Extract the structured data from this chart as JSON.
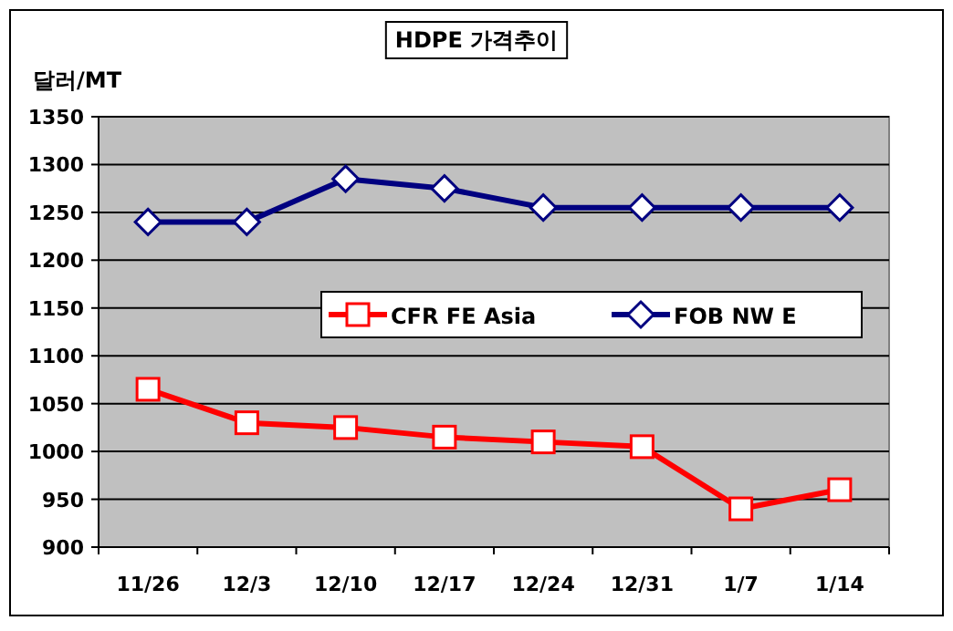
{
  "chart_data": {
    "type": "line",
    "title": "HDPE 가격추이",
    "ylabel": "달러/MT",
    "categories": [
      "11/26",
      "12/3",
      "12/10",
      "12/17",
      "12/24",
      "12/31",
      "1/7",
      "1/14"
    ],
    "series": [
      {
        "name": "CFR FE Asia",
        "color": "#ff0000",
        "marker": "square",
        "values": [
          1065,
          1030,
          1025,
          1015,
          1010,
          1005,
          940,
          960
        ]
      },
      {
        "name": "FOB NW E",
        "color": "#000080",
        "marker": "diamond",
        "values": [
          1240,
          1240,
          1285,
          1275,
          1255,
          1255,
          1255,
          1255
        ]
      }
    ],
    "ylim": [
      900,
      1350
    ],
    "yticks": [
      900,
      950,
      1000,
      1050,
      1100,
      1150,
      1200,
      1250,
      1300,
      1350
    ],
    "grid": "y",
    "legend": "center right",
    "line_style": "solid"
  }
}
